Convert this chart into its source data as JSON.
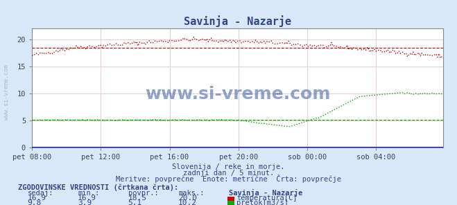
{
  "title": "Savinja - Nazarje",
  "background_color": "#d8e8f8",
  "plot_bg_color": "#ffffff",
  "grid_color": "#e8d0d0",
  "x_labels": [
    "pet 08:00",
    "pet 12:00",
    "pet 16:00",
    "pet 20:00",
    "sob 00:00",
    "sob 04:00"
  ],
  "x_ticks_pos": [
    0,
    48,
    96,
    144,
    192,
    240
  ],
  "n_points": 288,
  "ylim": [
    0,
    22
  ],
  "yticks": [
    0,
    5,
    10,
    15,
    20
  ],
  "temp_color": "#cc0000",
  "temp_avg_color": "#cc0000",
  "pretok_color": "#00aa00",
  "pretok_avg_color": "#00aa00",
  "blue_line_color": "#0000cc",
  "temp_min": 16.9,
  "temp_max": 20.0,
  "temp_avg": 18.5,
  "temp_current": 16.9,
  "pretok_min": 3.9,
  "pretok_max": 10.2,
  "pretok_avg": 5.1,
  "pretok_current": 9.8,
  "subtitle1": "Slovenija / reke in morje.",
  "subtitle2": "zadnji dan / 5 minut.",
  "subtitle3": "Meritve: povprečne  Enote: metrične  Črta: povprečje",
  "hist_label": "ZGODOVINSKE VREDNOSTI (črtkana črta):",
  "col_sedaj": "sedaj:",
  "col_min": "min.:",
  "col_povpr": "povpr.:",
  "col_maks": "maks.:",
  "col_station": "Savinja - Nazarje",
  "label_temp": "temperatura[C]",
  "label_pretok": "pretok[m3/s]",
  "watermark": "www.si-vreme.com",
  "watermark_color": "#4466aa",
  "figsize": [
    6.59,
    2.96
  ],
  "dpi": 100
}
